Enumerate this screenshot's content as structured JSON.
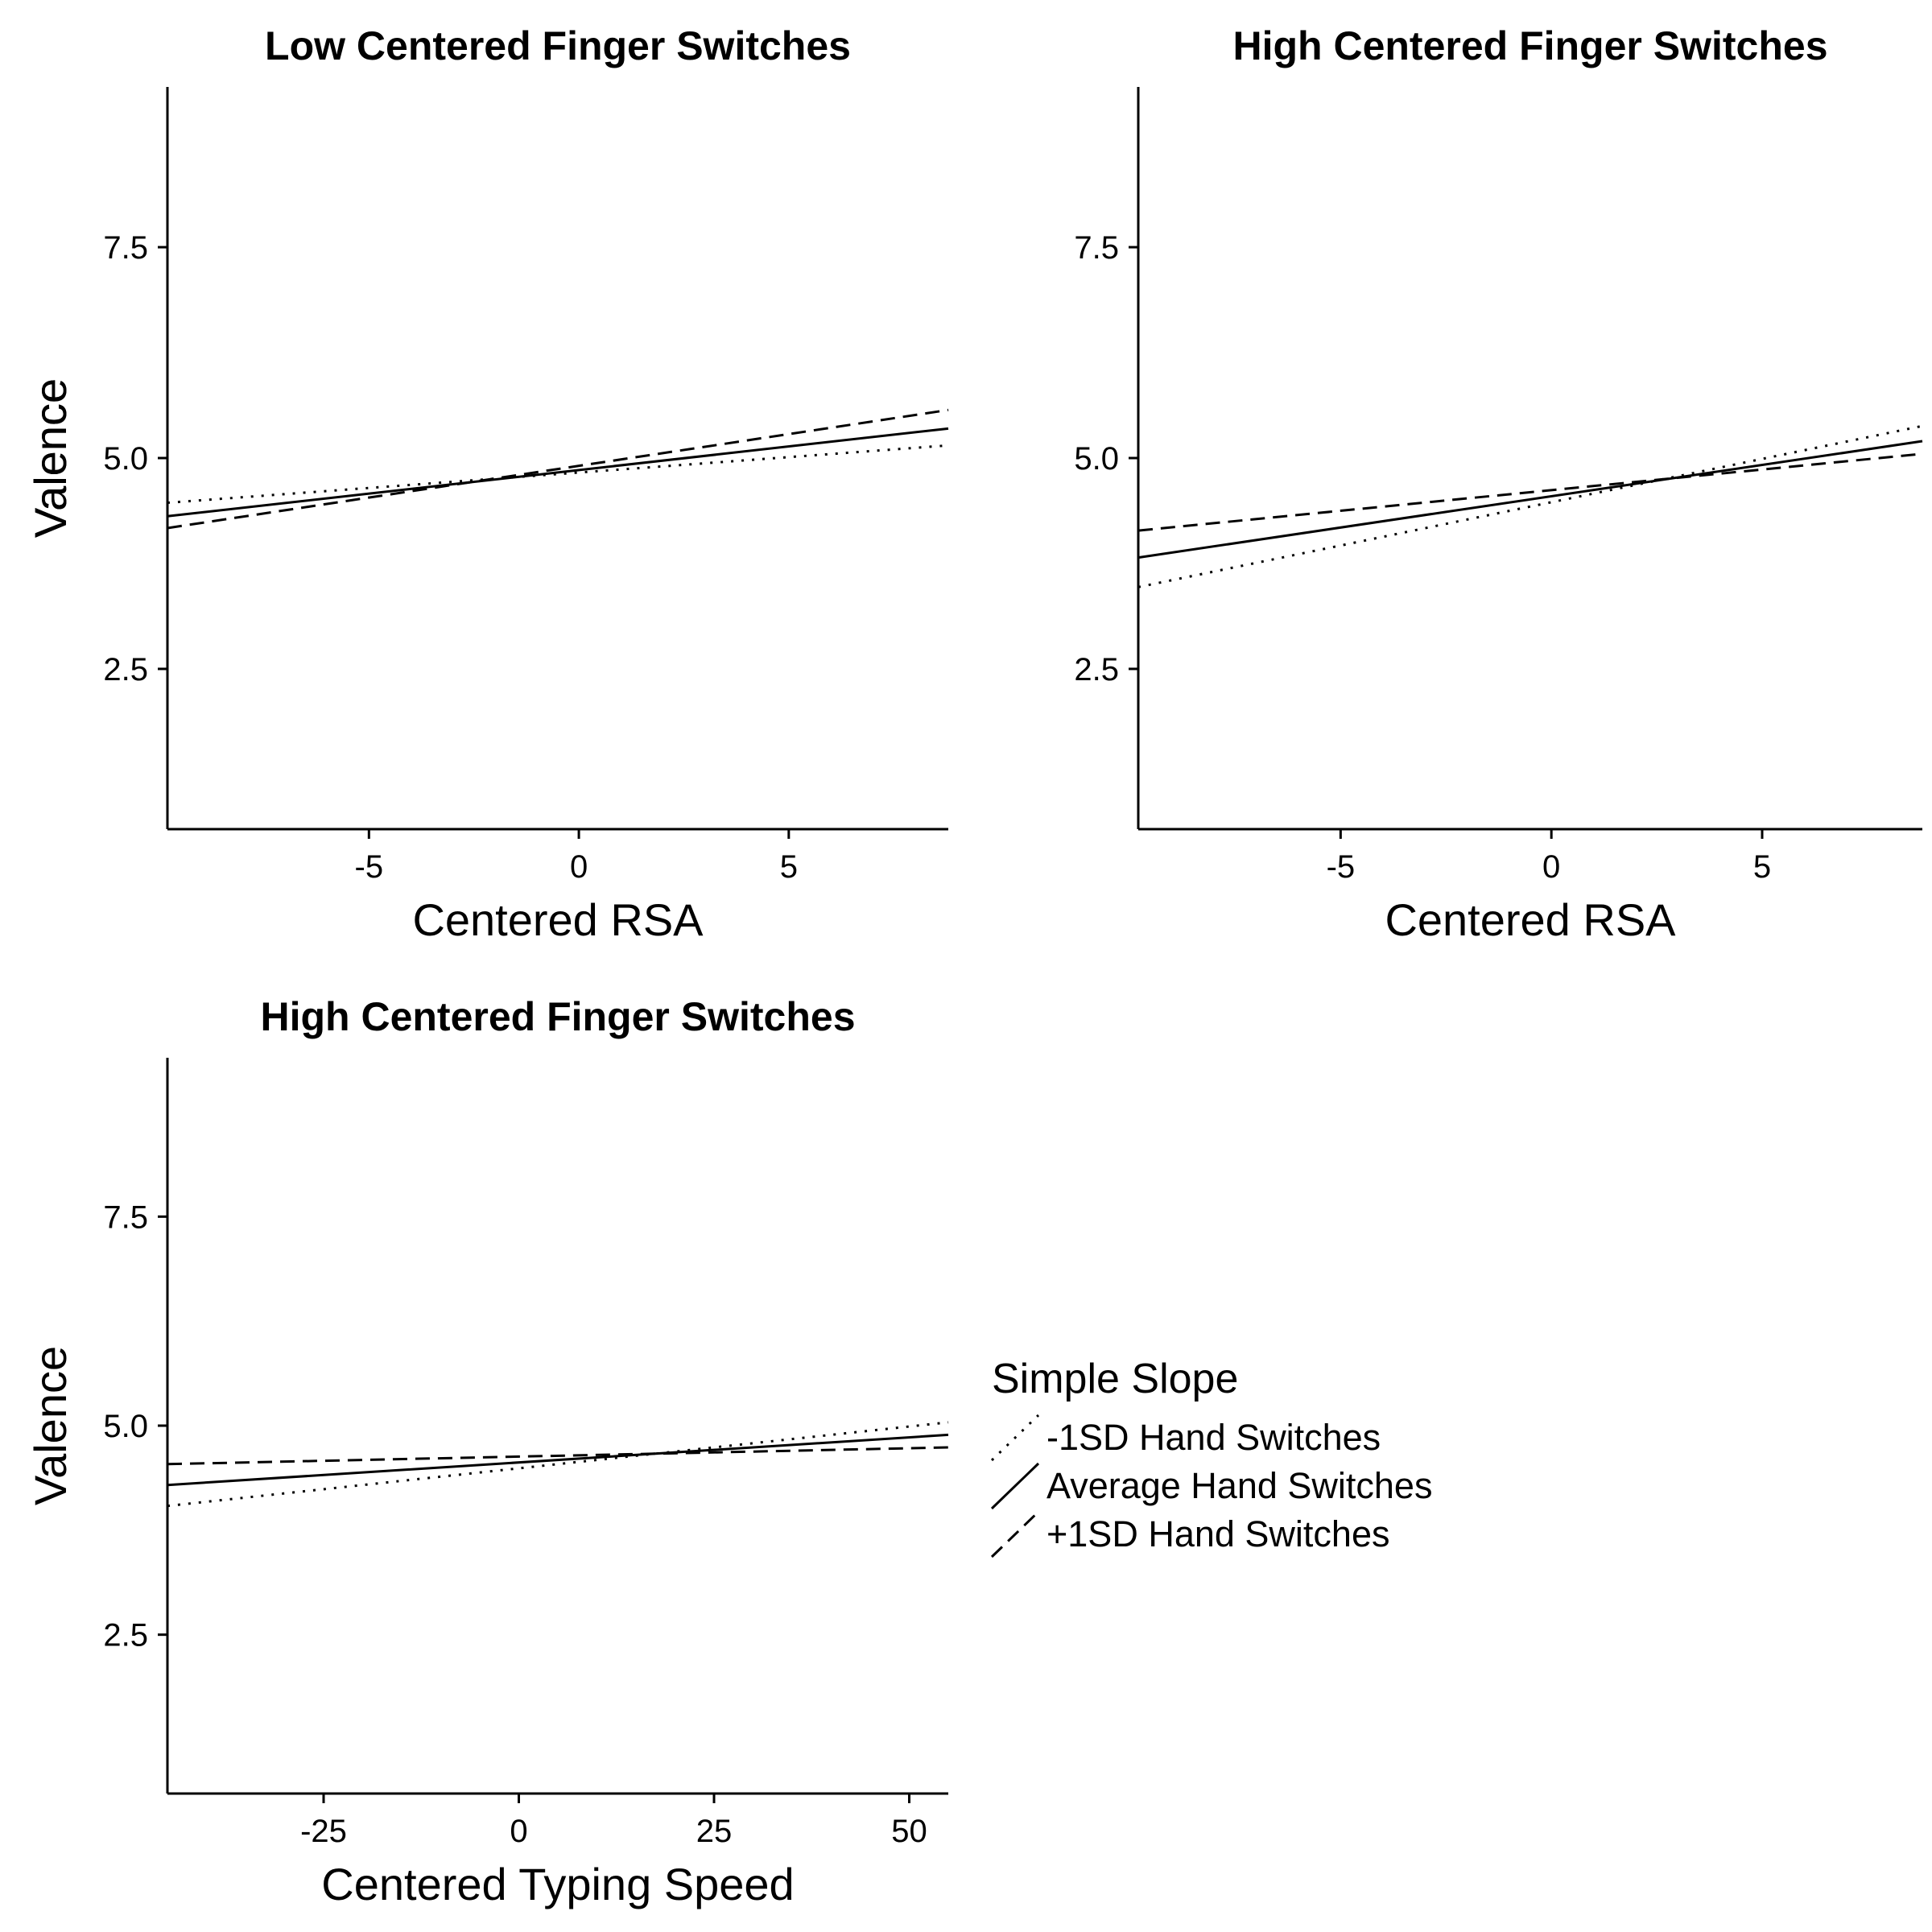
{
  "chart_data": [
    {
      "type": "line",
      "title": "Low Centered Finger Switches",
      "xlabel": "Centered RSA",
      "ylabel": "Valence",
      "xlim": [
        -9.8,
        8.8
      ],
      "ylim": [
        0.6,
        9.4
      ],
      "xticks": [
        -5,
        0,
        5
      ],
      "xtick_labels": [
        "-5",
        "0",
        "5"
      ],
      "yticks": [
        2.5,
        5.0,
        7.5
      ],
      "ytick_labels": [
        "2.5",
        "5.0",
        "7.5"
      ],
      "series": [
        {
          "name": "-1SD Hand Switches",
          "style": "dotted",
          "x": [
            -9.8,
            8.8
          ],
          "y": [
            4.47,
            5.15
          ]
        },
        {
          "name": "Average Hand Switches",
          "style": "solid",
          "x": [
            -9.8,
            8.8
          ],
          "y": [
            4.31,
            5.35
          ]
        },
        {
          "name": "+1SD Hand Switches",
          "style": "dashed",
          "x": [
            -9.8,
            8.8
          ],
          "y": [
            4.17,
            5.57
          ]
        }
      ]
    },
    {
      "type": "line",
      "title": "High Centered Finger Switches",
      "xlabel": "Centered RSA",
      "ylabel": "Valence",
      "xlim": [
        -9.8,
        8.8
      ],
      "ylim": [
        0.6,
        9.4
      ],
      "xticks": [
        -5,
        0,
        5
      ],
      "xtick_labels": [
        "-5",
        "0",
        "5"
      ],
      "yticks": [
        2.5,
        5.0,
        7.5
      ],
      "ytick_labels": [
        "2.5",
        "5.0",
        "7.5"
      ],
      "series": [
        {
          "name": "-1SD Hand Switches",
          "style": "dotted",
          "x": [
            -9.8,
            8.8
          ],
          "y": [
            3.47,
            5.38
          ]
        },
        {
          "name": "Average Hand Switches",
          "style": "solid",
          "x": [
            -9.8,
            8.8
          ],
          "y": [
            3.82,
            5.2
          ]
        },
        {
          "name": "+1SD Hand Switches",
          "style": "dashed",
          "x": [
            -9.8,
            8.8
          ],
          "y": [
            4.14,
            5.05
          ]
        }
      ]
    },
    {
      "type": "line",
      "title": "High Centered Finger Switches",
      "xlabel": "Centered Typing Speed",
      "ylabel": "Valence",
      "xlim": [
        -45,
        55
      ],
      "ylim": [
        0.6,
        9.4
      ],
      "xticks": [
        -25,
        0,
        25,
        50
      ],
      "xtick_labels": [
        "-25",
        "0",
        "25",
        "50"
      ],
      "yticks": [
        2.5,
        5.0,
        7.5
      ],
      "ytick_labels": [
        "2.5",
        "5.0",
        "7.5"
      ],
      "series": [
        {
          "name": "-1SD Hand Switches",
          "style": "dotted",
          "x": [
            -45,
            55
          ],
          "y": [
            4.04,
            5.04
          ]
        },
        {
          "name": "Average Hand Switches",
          "style": "solid",
          "x": [
            -45,
            55
          ],
          "y": [
            4.29,
            4.89
          ]
        },
        {
          "name": "+1SD Hand Switches",
          "style": "dashed",
          "x": [
            -45,
            55
          ],
          "y": [
            4.54,
            4.74
          ]
        }
      ]
    }
  ],
  "legend": {
    "title": "Simple Slope",
    "entries": [
      {
        "label": "-1SD Hand Switches",
        "style": "dotted"
      },
      {
        "label": "Average Hand Switches",
        "style": "solid"
      },
      {
        "label": "+1SD Hand Switches",
        "style": "dashed"
      }
    ]
  }
}
